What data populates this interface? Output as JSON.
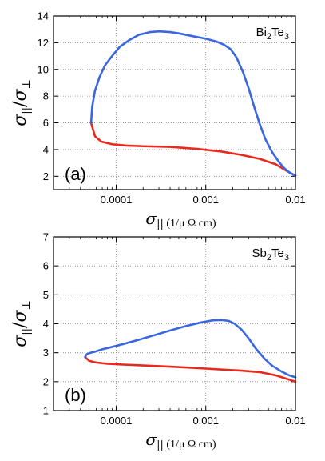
{
  "chart_data": [
    {
      "type": "line",
      "panel_label": "(a)",
      "material": {
        "base1": "Bi",
        "sub1": "2",
        "base2": "Te",
        "sub2": "3"
      },
      "xlabel": {
        "symbol": "σ",
        "subscript": "||",
        "unit": "(1/μ Ω cm)"
      },
      "ylabel": {
        "num": "σ",
        "num_sub": "||",
        "den": "σ",
        "den_sub": "⊥",
        "sep": "/"
      },
      "xscale": "log",
      "xlim": [
        2e-05,
        0.01
      ],
      "ylim": [
        1,
        14
      ],
      "x_ticks": [
        0.0001,
        0.001,
        0.01
      ],
      "x_tick_labels": [
        "0.0001",
        "0.001",
        "0.01"
      ],
      "y_ticks": [
        2,
        4,
        6,
        8,
        10,
        12,
        14
      ],
      "y_tick_labels": [
        "2",
        "4",
        "6",
        "8",
        "10",
        "12",
        "14"
      ],
      "grid": true,
      "series": [
        {
          "color": "#e8291c",
          "x": [
            5.25e-05,
            5.8e-05,
            6.8e-05,
            9e-05,
            0.00013,
            0.0002,
            0.0004,
            0.0008,
            0.0015,
            0.0025,
            0.004,
            0.006,
            0.008,
            0.01
          ],
          "y": [
            6.0,
            5.0,
            4.6,
            4.4,
            4.3,
            4.25,
            4.2,
            4.05,
            3.85,
            3.6,
            3.3,
            2.9,
            2.4,
            2.05
          ]
        },
        {
          "color": "#3a66e0",
          "x": [
            5.25e-05,
            5.4e-05,
            5.8e-05,
            6.5e-05,
            7.5e-05,
            9e-05,
            0.00011,
            0.00014,
            0.00018,
            0.00024,
            0.0003,
            0.0004,
            0.0005,
            0.0007,
            0.001,
            0.0013,
            0.0016,
            0.0019,
            0.0022,
            0.0026,
            0.003,
            0.0035,
            0.004,
            0.0046,
            0.0055,
            0.0065,
            0.0075,
            0.0085,
            0.01
          ],
          "y": [
            6.0,
            7.2,
            8.4,
            9.4,
            10.3,
            11.0,
            11.7,
            12.2,
            12.6,
            12.8,
            12.85,
            12.8,
            12.7,
            12.5,
            12.3,
            12.1,
            11.85,
            11.5,
            10.9,
            9.8,
            8.6,
            7.1,
            5.9,
            4.8,
            3.8,
            3.1,
            2.6,
            2.3,
            2.05
          ]
        }
      ]
    },
    {
      "type": "line",
      "panel_label": "(b)",
      "material": {
        "base1": "Sb",
        "sub1": "2",
        "base2": "Te",
        "sub2": "3"
      },
      "xlabel": {
        "symbol": "σ",
        "subscript": "||",
        "unit": "(1/μ Ω cm)"
      },
      "ylabel": {
        "num": "σ",
        "num_sub": "||",
        "den": "σ",
        "den_sub": "⊥",
        "sep": "/"
      },
      "xscale": "log",
      "xlim": [
        2e-05,
        0.01
      ],
      "ylim": [
        1,
        7
      ],
      "x_ticks": [
        0.0001,
        0.001,
        0.01
      ],
      "x_tick_labels": [
        "0.0001",
        "0.001",
        "0.01"
      ],
      "y_ticks": [
        1,
        2,
        3,
        4,
        5,
        6,
        7
      ],
      "y_tick_labels": [
        "1",
        "2",
        "3",
        "4",
        "5",
        "6",
        "7"
      ],
      "grid": true,
      "series": [
        {
          "color": "#e8291c",
          "x": [
            4.5e-05,
            5e-05,
            6e-05,
            8e-05,
            0.00012,
            0.0002,
            0.0004,
            0.0008,
            0.0015,
            0.0025,
            0.004,
            0.006,
            0.008,
            0.01
          ],
          "y": [
            2.85,
            2.72,
            2.66,
            2.62,
            2.59,
            2.56,
            2.52,
            2.47,
            2.42,
            2.38,
            2.33,
            2.22,
            2.1,
            2.0
          ]
        },
        {
          "color": "#3a66e0",
          "x": [
            4.5e-05,
            4.7e-05,
            5.2e-05,
            6e-05,
            7e-05,
            9e-05,
            0.00012,
            0.00018,
            0.00025,
            0.0004,
            0.0006,
            0.0009,
            0.0012,
            0.0015,
            0.0018,
            0.0021,
            0.0025,
            0.003,
            0.0036,
            0.0045,
            0.0055,
            0.007,
            0.0085,
            0.01
          ],
          "y": [
            2.85,
            2.95,
            3.0,
            3.05,
            3.12,
            3.2,
            3.3,
            3.45,
            3.58,
            3.77,
            3.92,
            4.05,
            4.12,
            4.13,
            4.1,
            4.0,
            3.8,
            3.5,
            3.15,
            2.8,
            2.55,
            2.35,
            2.22,
            2.15
          ]
        }
      ]
    }
  ]
}
